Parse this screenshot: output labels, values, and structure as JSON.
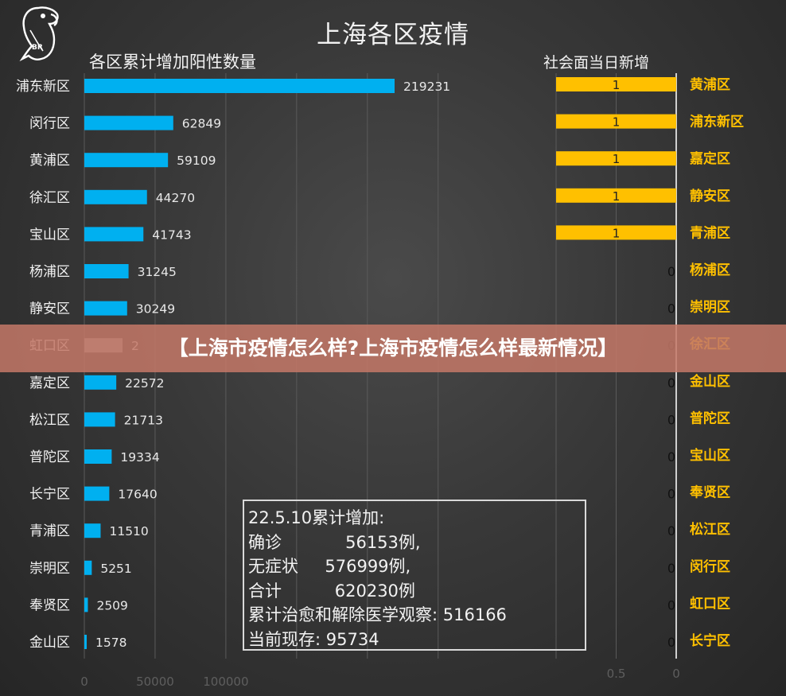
{
  "title": "上海各区疫情",
  "banner": "【上海市疫情怎么样?上海市疫情怎么样最新情况】",
  "colors": {
    "left_bar": "#00b0f0",
    "left_bar_covered": "#9a9a9a",
    "right_bar": "#ffc000",
    "right_label": "#ffc000",
    "background": "#3a3a3a"
  },
  "chart_data": [
    {
      "type": "bar",
      "orientation": "horizontal",
      "title": "各区累计增加阳性数量",
      "categories": [
        "浦东新区",
        "闵行区",
        "黄浦区",
        "徐汇区",
        "宝山区",
        "杨浦区",
        "静安区",
        "虹口区",
        "嘉定区",
        "松江区",
        "普陀区",
        "长宁区",
        "青浦区",
        "崇明区",
        "奉贤区",
        "金山区"
      ],
      "values": [
        219231,
        62849,
        59109,
        44270,
        41743,
        31245,
        30249,
        null,
        22572,
        21713,
        19334,
        17640,
        11510,
        5251,
        2509,
        1578
      ],
      "value_labels": [
        "219231",
        "62849",
        "59109",
        "44270",
        "41743",
        "31245",
        "30249",
        "2",
        "22572",
        "21713",
        "19334",
        "17640",
        "11510",
        "5251",
        "2509",
        "1578"
      ],
      "x_ticks": [
        "0",
        "50000",
        "100000"
      ],
      "xlim": [
        0,
        250000
      ],
      "grid": true
    },
    {
      "type": "bar",
      "orientation": "horizontal",
      "direction": "right-to-left",
      "title": "社会面当日新增",
      "categories": [
        "黄浦区",
        "浦东新区",
        "嘉定区",
        "静安区",
        "青浦区",
        "杨浦区",
        "崇明区",
        "徐汇区",
        "金山区",
        "普陀区",
        "宝山区",
        "奉贤区",
        "松江区",
        "闵行区",
        "虹口区",
        "长宁区"
      ],
      "values": [
        1,
        1,
        1,
        1,
        1,
        0,
        0,
        0,
        0,
        0,
        0,
        0,
        0,
        0,
        0,
        0
      ],
      "value_labels": [
        "1",
        "1",
        "1",
        "1",
        "1",
        "0",
        "0",
        "0",
        "0",
        "0",
        "0",
        "0",
        "0",
        "0",
        "0",
        "0"
      ],
      "x_ticks": [
        "0.5",
        "0"
      ],
      "xlim": [
        0,
        1
      ],
      "grid": true
    }
  ],
  "note": {
    "lines": [
      "22.5.10累计增加:",
      "确诊            56153例,",
      "无症状     576999例,",
      "合计          620230例",
      "累计治愈和解除医学观察: 516166",
      "当前现存: 95734"
    ]
  }
}
